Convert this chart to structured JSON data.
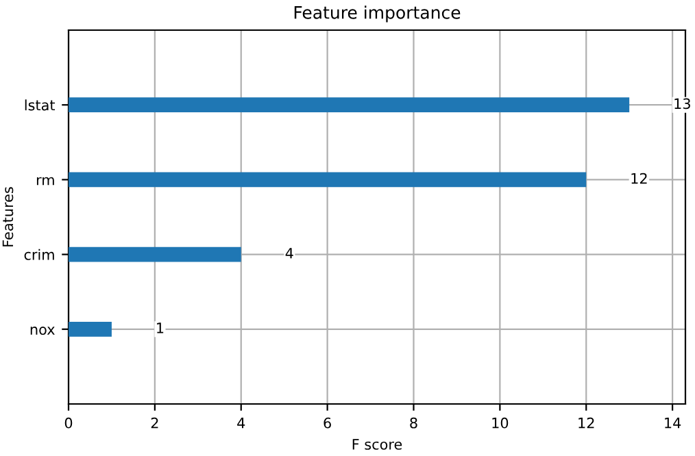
{
  "chart_data": {
    "type": "bar",
    "orientation": "horizontal",
    "title": "Feature importance",
    "xlabel": "F score",
    "ylabel": "Features",
    "categories": [
      "lstat",
      "rm",
      "crim",
      "nox"
    ],
    "values": [
      13,
      12,
      4,
      1
    ],
    "color": "#1f77b4",
    "xlim": [
      0,
      14.3
    ],
    "xticks": [
      0,
      2,
      4,
      6,
      8,
      10,
      12,
      14
    ],
    "grid": true,
    "data_labels": true
  }
}
